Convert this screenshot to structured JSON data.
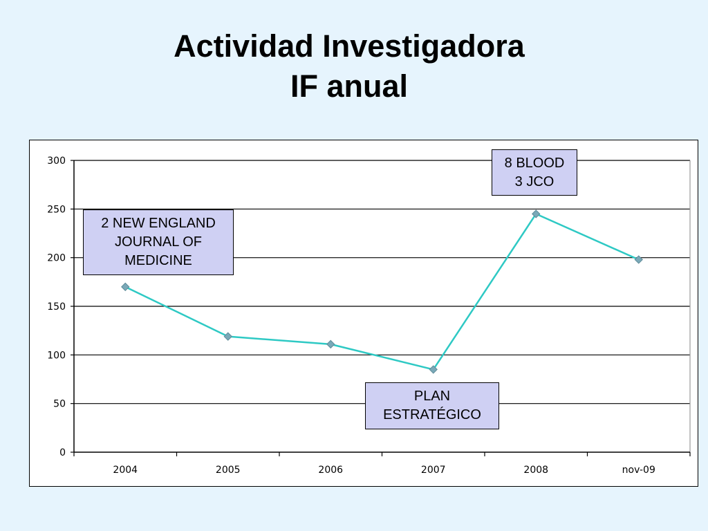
{
  "slide": {
    "title_line1": "Actividad Investigadora",
    "title_line2": "IF anual"
  },
  "colors": {
    "background": "#e6f4fd",
    "plot_background": "#ffffff",
    "line": "#2ec9c4",
    "marker": "#7aa9b8",
    "callout_fill": "#cfd0f3",
    "gridline": "#000000"
  },
  "chart_data": {
    "type": "line",
    "title": "",
    "xlabel": "",
    "ylabel": "",
    "categories": [
      "2004",
      "2005",
      "2006",
      "2007",
      "2008",
      "nov-09"
    ],
    "series": [
      {
        "values": [
          170,
          119,
          111,
          85,
          245,
          198
        ]
      }
    ],
    "ylim": [
      0,
      300
    ],
    "yticks": [
      0,
      50,
      100,
      150,
      200,
      250,
      300
    ],
    "grid": true,
    "legend": "none",
    "marker": "diamond",
    "annotations": [
      {
        "lines": [
          "2 NEW ENGLAND",
          "JOURNAL OF",
          "MEDICINE"
        ],
        "near": "2004"
      },
      {
        "lines": [
          "PLAN",
          "ESTRATÉGICO"
        ],
        "near": "2007"
      },
      {
        "lines": [
          "8 BLOOD",
          "3 JCO"
        ],
        "near": "2008"
      }
    ]
  }
}
